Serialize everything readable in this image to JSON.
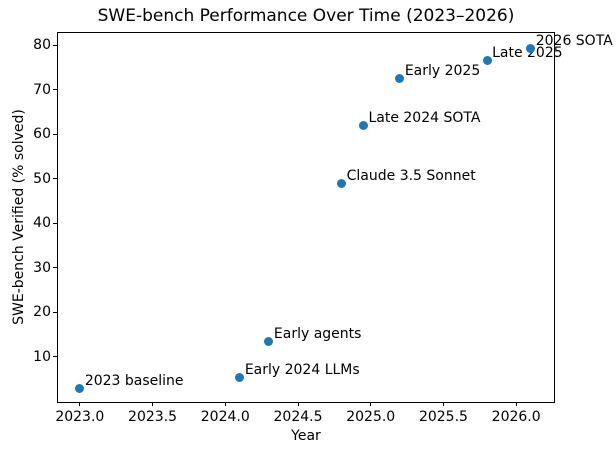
{
  "chart_data": {
    "type": "scatter",
    "title": "SWE-bench Performance Over Time (2023–2026)",
    "xlabel": "Year",
    "ylabel": "SWE-bench Verified (% solved)",
    "xlim": [
      2022.85,
      2026.26
    ],
    "ylim": [
      -0.1,
      82.7
    ],
    "x_ticks": [
      2023.0,
      2023.5,
      2024.0,
      2024.5,
      2025.0,
      2025.5,
      2026.0
    ],
    "x_tick_decimals": 1,
    "y_ticks": [
      10,
      20,
      30,
      40,
      50,
      60,
      70,
      80
    ],
    "grid": false,
    "legend_position": "none",
    "marker_color": "#1f77b4",
    "text_color": "#000000",
    "background_color": "#ffffff",
    "points": [
      {
        "x": 2023.0,
        "y": 3.0,
        "label": "2023 baseline"
      },
      {
        "x": 2024.1,
        "y": 5.5,
        "label": "Early 2024 LLMs"
      },
      {
        "x": 2024.3,
        "y": 13.5,
        "label": "Early agents"
      },
      {
        "x": 2024.8,
        "y": 49.0,
        "label": "Claude 3.5 Sonnet"
      },
      {
        "x": 2024.95,
        "y": 62.0,
        "label": "Late 2024 SOTA"
      },
      {
        "x": 2025.2,
        "y": 72.5,
        "label": "Early 2025"
      },
      {
        "x": 2025.8,
        "y": 76.5,
        "label": "Late 2025"
      },
      {
        "x": 2026.1,
        "y": 79.3,
        "label": "2026 SOTA"
      }
    ]
  }
}
